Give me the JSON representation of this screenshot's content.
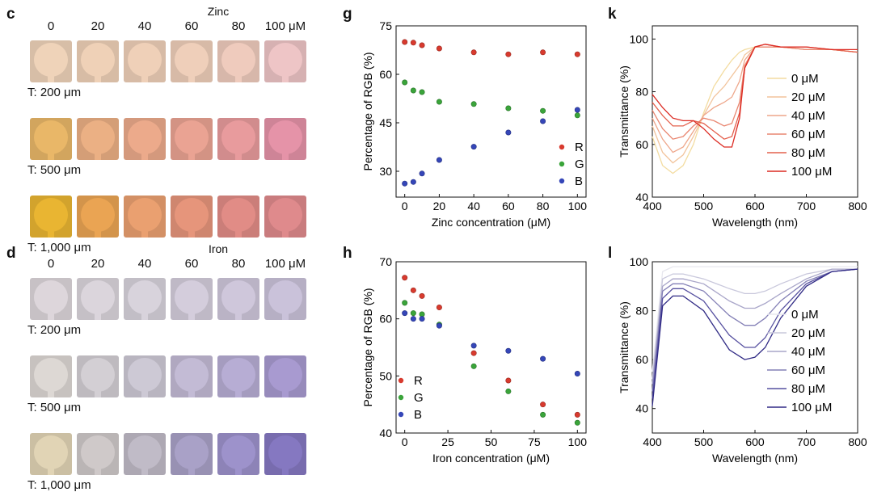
{
  "panels": {
    "c": "c",
    "d": "d",
    "g": "g",
    "h": "h",
    "k": "k",
    "l": "l"
  },
  "zinc_images": {
    "title": "Zinc",
    "concentrations": [
      "0",
      "20",
      "40",
      "60",
      "80",
      "100 μM"
    ],
    "thickness_labels": [
      "T: 200 μm",
      "T: 500 μm",
      "T: 1,000 μm"
    ],
    "colors": [
      [
        "#efd3b9",
        "#efd1b7",
        "#efd0b8",
        "#efcfba",
        "#efcbbd",
        "#eec5c6"
      ],
      [
        "#e9b768",
        "#ebb084",
        "#ecaa8b",
        "#eaa393",
        "#e89b9d",
        "#e593a8"
      ],
      [
        "#e9b532",
        "#eaa453",
        "#eaa070",
        "#e6957b",
        "#e18c86",
        "#df8a8c"
      ]
    ]
  },
  "iron_images": {
    "title": "Iron",
    "concentrations": [
      "0",
      "20",
      "40",
      "60",
      "80",
      "100 μM"
    ],
    "thickness_labels": [
      "T: 200 μm",
      "T: 500 μm",
      "T: 1,000 μm"
    ],
    "colors": [
      [
        "#ddd6db",
        "#dbd5dc",
        "#d8d3dc",
        "#d4cddc",
        "#cfc7db",
        "#cac2da"
      ],
      [
        "#ddd8d4",
        "#d3cfd4",
        "#cdc9d5",
        "#c3bbd5",
        "#b7add4",
        "#a89ad0"
      ],
      [
        "#e1d4b5",
        "#cfc9c9",
        "#c0bbc7",
        "#a9a1c7",
        "#9d92cb",
        "#8578c1"
      ]
    ]
  },
  "chart_data": [
    {
      "id": "g",
      "type": "scatter",
      "xlabel": "Zinc concentration (μM)",
      "ylabel": "Percentage of RGB (%)",
      "xlim": [
        -5,
        105
      ],
      "ylim": [
        22,
        75
      ],
      "xticks": [
        0,
        20,
        40,
        60,
        80,
        100
      ],
      "yticks": [
        30,
        45,
        60,
        75
      ],
      "x": [
        0,
        5,
        10,
        20,
        40,
        60,
        80,
        100
      ],
      "series": [
        {
          "name": "R",
          "color": "#d83a2e",
          "values": [
            70,
            69.8,
            69,
            68,
            66.8,
            66.2,
            66.8,
            66.2
          ]
        },
        {
          "name": "G",
          "color": "#3aa43a",
          "values": [
            57.5,
            55,
            54.5,
            51.5,
            50.8,
            49.5,
            48.7,
            47.3
          ]
        },
        {
          "name": "B",
          "color": "#3546b8",
          "values": [
            26.2,
            26.7,
            29.3,
            33.5,
            37.6,
            42,
            45.5,
            49
          ]
        }
      ],
      "legend": "bottom-right"
    },
    {
      "id": "h",
      "type": "scatter",
      "xlabel": "Iron concentration (μM)",
      "ylabel": "Percentage of RGB (%)",
      "xlim": [
        -5,
        105
      ],
      "ylim": [
        40,
        70
      ],
      "xticks": [
        0,
        25,
        50,
        75,
        100
      ],
      "yticks": [
        40,
        50,
        60,
        70
      ],
      "x": [
        0,
        5,
        10,
        20,
        40,
        60,
        80,
        100
      ],
      "series": [
        {
          "name": "R",
          "color": "#d83a2e",
          "values": [
            67.2,
            65,
            64,
            62,
            54,
            49.2,
            45,
            43.2
          ]
        },
        {
          "name": "G",
          "color": "#3aa43a",
          "values": [
            62.8,
            61,
            60.8,
            59,
            51.7,
            47.3,
            43.2,
            41.8
          ]
        },
        {
          "name": "B",
          "color": "#3546b8",
          "values": [
            61,
            60,
            60,
            58.8,
            55.3,
            54.4,
            53,
            50.4
          ]
        }
      ],
      "legend": "bottom-left"
    },
    {
      "id": "k",
      "type": "line",
      "xlabel": "Wavelength (nm)",
      "ylabel": "Transmittance (%)",
      "xlim": [
        400,
        800
      ],
      "ylim": [
        40,
        105
      ],
      "xticks": [
        400,
        500,
        600,
        700,
        800
      ],
      "yticks": [
        40,
        60,
        80,
        100
      ],
      "x": [
        400,
        420,
        440,
        460,
        480,
        500,
        520,
        540,
        555,
        570,
        580,
        600,
        620,
        650,
        700,
        750,
        800
      ],
      "series": [
        {
          "name": "0 μM",
          "color": "#f3dca0",
          "values": [
            63,
            52,
            49,
            52,
            60,
            72,
            82,
            88,
            92,
            95,
            96,
            97,
            97,
            97,
            96,
            96,
            95
          ]
        },
        {
          "name": "20 μM",
          "color": "#f2c49c",
          "values": [
            67,
            57,
            53,
            56,
            63,
            71,
            78,
            82,
            86,
            90,
            94,
            97,
            97,
            97,
            96,
            96,
            95
          ]
        },
        {
          "name": "40 μM",
          "color": "#eea68a",
          "values": [
            70,
            62,
            57,
            59,
            65,
            71,
            74,
            76,
            78,
            84,
            92,
            97,
            97,
            97,
            96,
            96,
            95
          ]
        },
        {
          "name": "60 μM",
          "color": "#e98670",
          "values": [
            73,
            66,
            62,
            63,
            67,
            70,
            69,
            67,
            68,
            76,
            90,
            97,
            97,
            97,
            96,
            96,
            95
          ]
        },
        {
          "name": "80 μM",
          "color": "#e4604d",
          "values": [
            76,
            71,
            67,
            67,
            69,
            68,
            65,
            62,
            63,
            72,
            89,
            97,
            98,
            97,
            97,
            96,
            95
          ]
        },
        {
          "name": "100 μM",
          "color": "#dc2a22",
          "values": [
            79,
            74,
            70,
            69,
            69,
            66,
            62,
            59,
            59,
            70,
            89,
            97,
            98,
            97,
            97,
            96,
            96
          ]
        }
      ]
    },
    {
      "id": "l",
      "type": "line",
      "xlabel": "Wavelength (nm)",
      "ylabel": "Transmittance (%)",
      "xlim": [
        400,
        800
      ],
      "ylim": [
        30,
        100
      ],
      "xticks": [
        400,
        500,
        600,
        700,
        800
      ],
      "yticks": [
        40,
        60,
        80,
        100
      ],
      "x": [
        400,
        420,
        440,
        460,
        500,
        550,
        580,
        600,
        620,
        650,
        700,
        750,
        800
      ],
      "series": [
        {
          "name": "0 μM",
          "color": "#e7e7ee",
          "values": [
            55,
            96,
            98,
            98,
            98,
            98,
            98,
            98,
            98,
            98,
            98,
            98,
            98
          ]
        },
        {
          "name": "20 μM",
          "color": "#c9c8dc",
          "values": [
            52,
            93,
            95,
            95,
            93,
            89,
            87,
            87,
            88,
            91,
            95,
            97,
            97
          ]
        },
        {
          "name": "40 μM",
          "color": "#a9a6c9",
          "values": [
            50,
            90,
            93,
            93,
            91,
            84,
            81,
            81,
            83,
            87,
            93,
            97,
            97
          ]
        },
        {
          "name": "60 μM",
          "color": "#8480b6",
          "values": [
            47,
            88,
            91,
            91,
            88,
            78,
            74,
            74,
            77,
            84,
            92,
            96,
            97
          ]
        },
        {
          "name": "80 μM",
          "color": "#5751a0",
          "values": [
            44,
            85,
            89,
            89,
            84,
            70,
            65,
            65,
            69,
            80,
            91,
            96,
            97
          ]
        },
        {
          "name": "100 μM",
          "color": "#302a85",
          "values": [
            41,
            82,
            86,
            86,
            80,
            64,
            60,
            61,
            65,
            77,
            90,
            96,
            97
          ]
        }
      ]
    }
  ]
}
